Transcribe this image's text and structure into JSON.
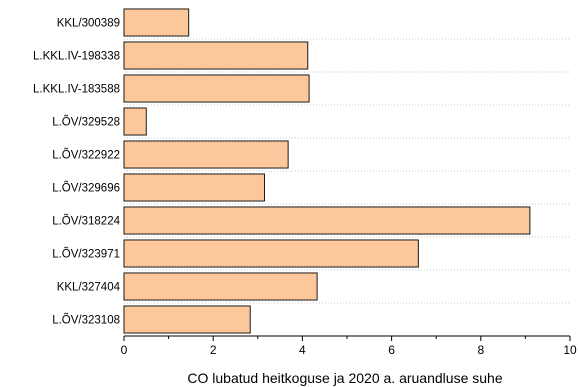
{
  "chart_data": {
    "type": "bar",
    "orientation": "horizontal",
    "categories": [
      "KKL/300389",
      "L.KKL.IV-198338",
      "L.KKL.IV-183588",
      "L.ÕV/329528",
      "L.ÕV/322922",
      "L.ÕV/329696",
      "L.ÕV/318224",
      "L.ÕV/323971",
      "KKL/327404",
      "L.ÕV/323108"
    ],
    "values": [
      1.45,
      4.12,
      4.15,
      0.5,
      3.68,
      3.15,
      9.1,
      6.6,
      4.33,
      2.83
    ],
    "title": "",
    "xlabel": "CO lubatud heitkoguse ja 2020 a. aruandluse suhe",
    "ylabel": "",
    "xlim": [
      0,
      10
    ],
    "xticks": [
      "0",
      "2",
      "4",
      "6",
      "8",
      "10"
    ],
    "grid": "horizontal dotted",
    "legend": "none",
    "bar_color": "#FCC89B",
    "bar_edge_color": "#1a1a1a",
    "grid_color": "#b8b8b8"
  }
}
